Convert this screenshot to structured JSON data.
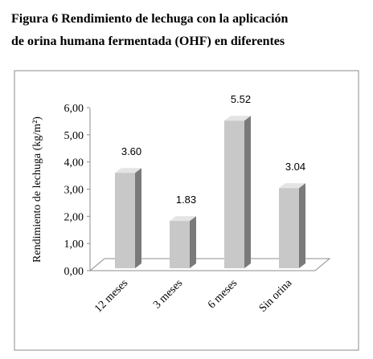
{
  "caption": {
    "line1": "Figura 6 Rendimiento de lechuga con la aplicación",
    "line2": "de orina humana fermentada (OHF) en diferentes"
  },
  "chart_data": {
    "type": "bar",
    "categories": [
      "12 meses",
      "3 meses",
      "6 meses",
      "Sin orina"
    ],
    "values": [
      3.6,
      1.83,
      5.52,
      3.04
    ],
    "data_labels": [
      "3.60",
      "1.83",
      "5.52",
      "3.04"
    ],
    "title": "",
    "xlabel": "",
    "ylabel": "Rendimiento de lechuga (kg/m²)",
    "ylim": [
      0,
      6
    ],
    "yticks": [
      "0,00",
      "1,00",
      "2,00",
      "3,00",
      "4,00",
      "5,00",
      "6,00"
    ],
    "grid": false,
    "legend": "none",
    "style": "3d-column",
    "colors": {
      "bar_front": "#c8c8c8",
      "bar_side": "#7a7a7a",
      "bar_top": "#e4e4e4",
      "frame": "#8c8c8c"
    }
  }
}
